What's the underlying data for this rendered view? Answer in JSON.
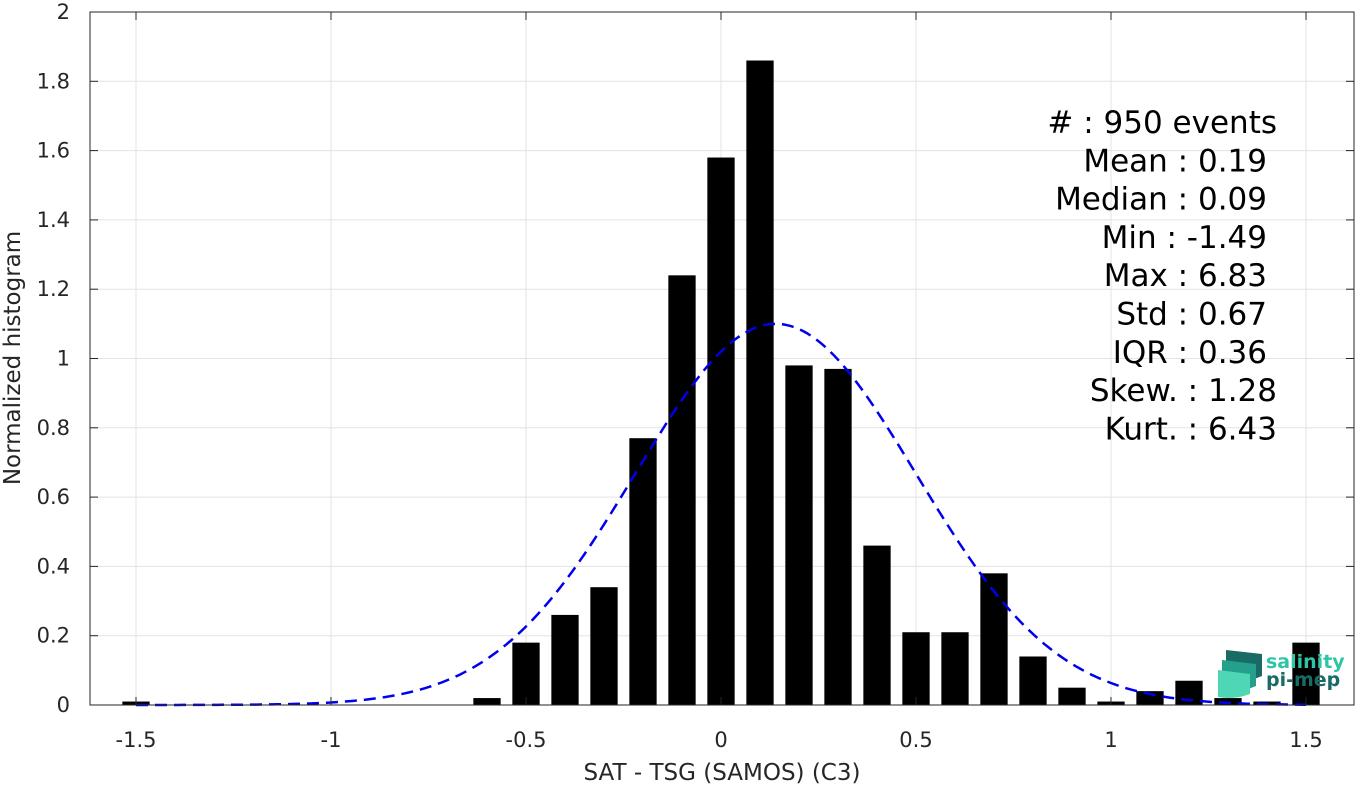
{
  "chart_data": {
    "type": "bar",
    "title": "",
    "xlabel": "SAT - TSG (SAMOS) (C3)",
    "ylabel": "Normalized histogram",
    "xlim": [
      -1.6,
      1.6
    ],
    "ylim": [
      0,
      2
    ],
    "grid": true,
    "x_ticks": [
      -1.5,
      -1,
      -0.5,
      0,
      0.5,
      1,
      1.5
    ],
    "x_tick_labels": [
      "-1.5",
      "-1",
      "-0.5",
      "0",
      "0.5",
      "1",
      "1.5"
    ],
    "y_ticks": [
      0,
      0.2,
      0.4,
      0.6,
      0.8,
      1,
      1.2,
      1.4,
      1.6,
      1.8,
      2
    ],
    "y_tick_labels": [
      "0",
      "0.2",
      "0.4",
      "0.6",
      "0.8",
      "1",
      "1.2",
      "1.4",
      "1.6",
      "1.8",
      "2"
    ],
    "bar_width": 0.07,
    "bars": {
      "x": [
        -1.5,
        -0.6,
        -0.5,
        -0.4,
        -0.3,
        -0.2,
        -0.1,
        0,
        0.1,
        0.2,
        0.3,
        0.4,
        0.5,
        0.6,
        0.7,
        0.8,
        0.9,
        1.0,
        1.1,
        1.2,
        1.3,
        1.4,
        1.5
      ],
      "values": [
        0.01,
        0.02,
        0.18,
        0.26,
        0.34,
        0.77,
        1.24,
        1.58,
        1.86,
        0.98,
        0.97,
        0.46,
        0.21,
        0.21,
        0.38,
        0.14,
        0.05,
        0.01,
        0.04,
        0.07,
        0.02,
        0.01,
        0.18
      ],
      "color": "#000000"
    },
    "fit_curve": {
      "style": "dashed",
      "color": "#0000ee",
      "mean": 0.14,
      "std": 0.36,
      "peak": 1.1,
      "x_range": [
        -1.5,
        1.5
      ]
    },
    "stats": [
      {
        "label": "#  : 950 events"
      },
      {
        "label": "Mean : 0.19"
      },
      {
        "label": "Median : 0.09"
      },
      {
        "label": "Min : -1.49"
      },
      {
        "label": "Max : 6.83"
      },
      {
        "label": "Std : 0.67"
      },
      {
        "label": "IQR : 0.36"
      },
      {
        "label": "Skew. : 1.28"
      },
      {
        "label": "Kurt. : 6.43"
      }
    ]
  },
  "logo": {
    "line1": "salinity",
    "line2": "pi-mep",
    "color_light": "#2ec4a6",
    "color_dark": "#1a6b66"
  }
}
